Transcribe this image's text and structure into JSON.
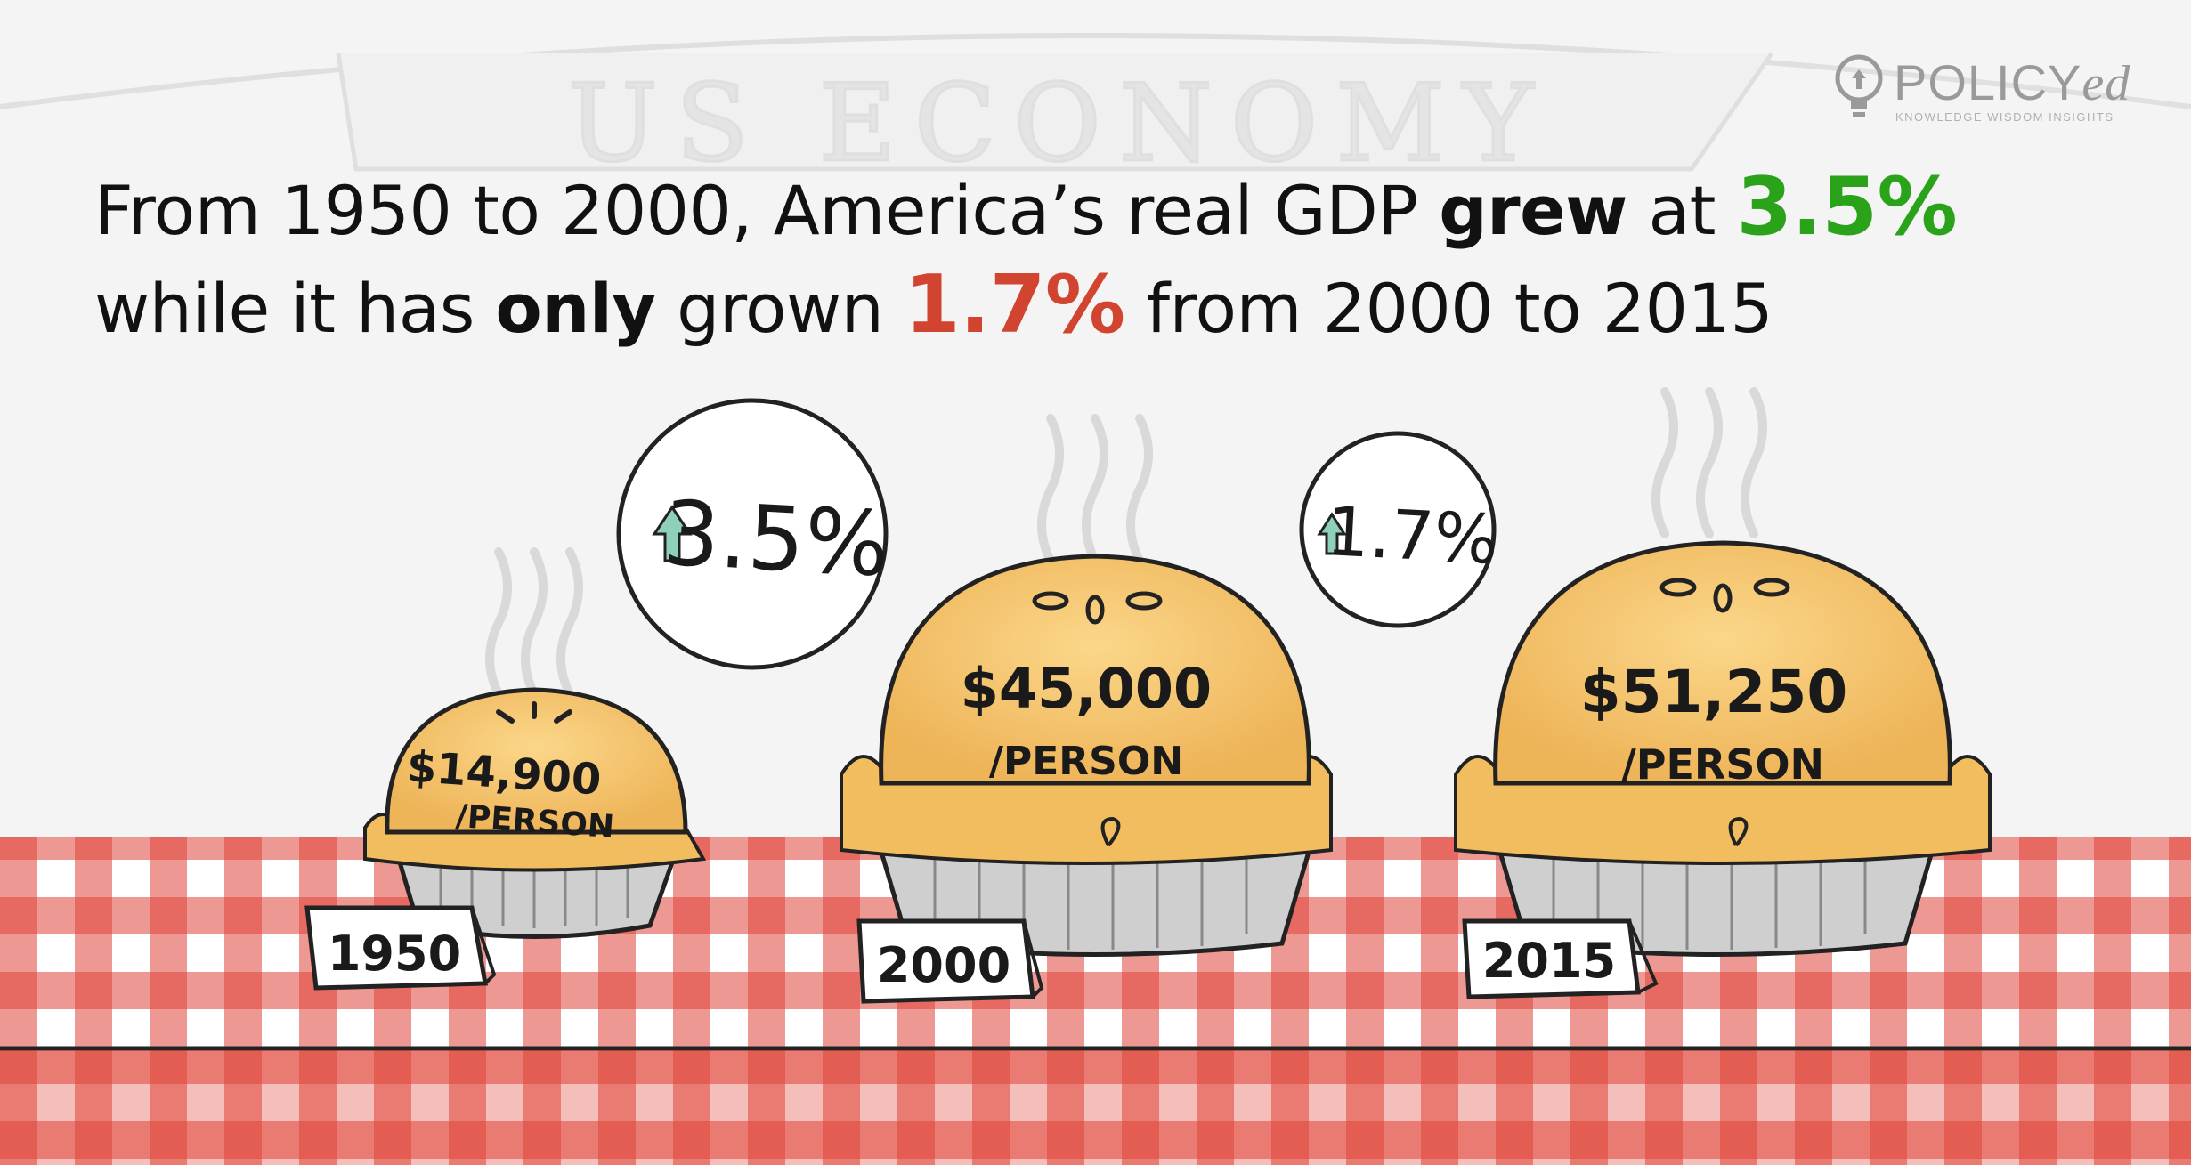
{
  "banner": {
    "text": "US ECONOMY"
  },
  "logo": {
    "name_main": "POLICY",
    "name_suffix": "ed",
    "tagline": "KNOWLEDGE WISDOM INSIGHTS",
    "icon": "lightbulb-icon"
  },
  "headline": {
    "line1": {
      "part1": "From 1950 to 2000, America’s real GDP ",
      "bold": "grew",
      "part2": " at ",
      "value": "3.5%"
    },
    "line2": {
      "part1": "while it has ",
      "bold": "only",
      "part2": " grown ",
      "value": "1.7%",
      "part3": " from 2000 to 2015"
    }
  },
  "pies": [
    {
      "year": "1950",
      "amount": "$14,900",
      "unit": "/PERSON"
    },
    {
      "year": "2000",
      "amount": "$45,000",
      "unit": "/PERSON"
    },
    {
      "year": "2015",
      "amount": "$51,250",
      "unit": "/PERSON"
    }
  ],
  "growth_bubbles": [
    {
      "value": "3.5%",
      "icon": "arrow-up-icon"
    },
    {
      "value": "1.7%",
      "icon": "arrow-up-icon"
    }
  ],
  "colors": {
    "green": "#2aa31b",
    "red": "#d04430",
    "crust": "#f5c46a",
    "gingham": "#e0443a",
    "tin": "#c9c9c9"
  }
}
